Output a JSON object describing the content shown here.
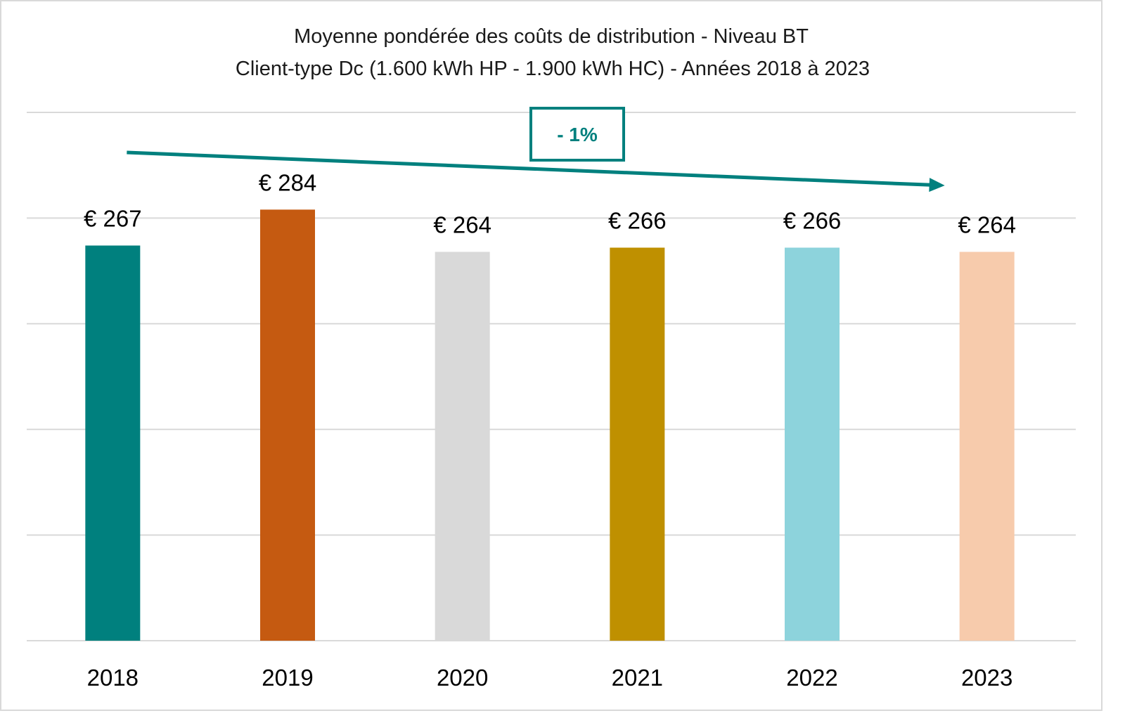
{
  "chart_data": {
    "type": "bar",
    "title": "Moyenne pondérée des coûts de distribution - Niveau BT",
    "subtitle": "Client-type Dc (1.600 kWh HP - 1.900 kWh HC) - Années 2018 à 2023",
    "xlabel": "",
    "ylabel": "",
    "categories": [
      "2018",
      "2019",
      "2020",
      "2021",
      "2022",
      "2023"
    ],
    "values": [
      267,
      284,
      264,
      266,
      266,
      264
    ],
    "data_labels": [
      "€ 267",
      "€ 284",
      "€ 264",
      "€ 266",
      "€ 266",
      "€ 264"
    ],
    "colors": [
      "#00807E",
      "#C55A11",
      "#D9D9D9",
      "#BF9000",
      "#8DD3DC",
      "#F7CBAC"
    ],
    "ylim": [
      80,
      330
    ],
    "y_gridlines": [
      80,
      130,
      180,
      230,
      280,
      330
    ],
    "y_tick_labels_visible": false,
    "grid": true,
    "legend": "none",
    "annotation": {
      "text": "- 1%",
      "type": "trend-arrow",
      "from_category": "2018",
      "to_category": "2023",
      "color": "#00807E"
    }
  }
}
